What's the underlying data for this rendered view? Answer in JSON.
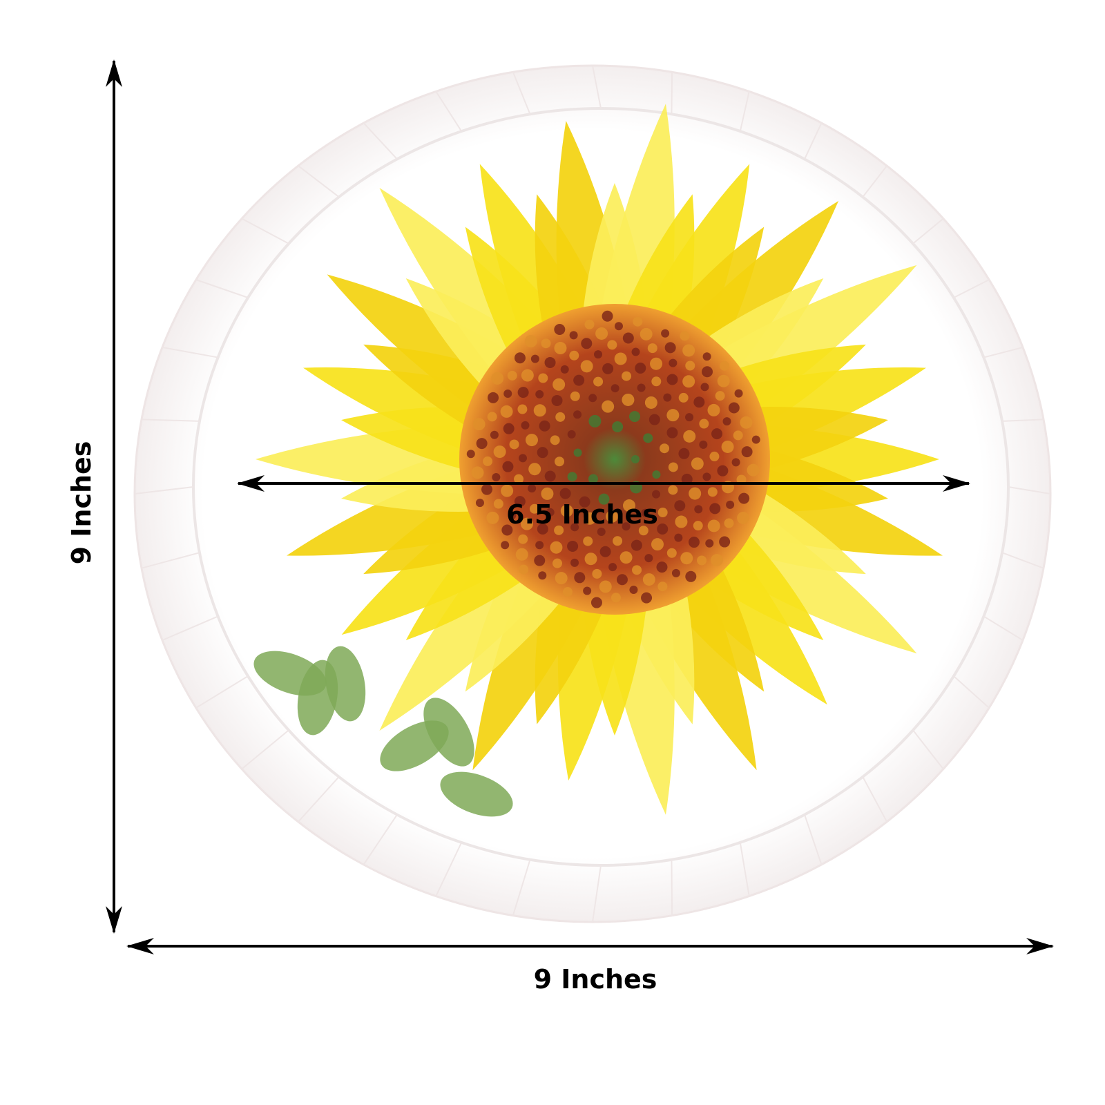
{
  "product": {
    "plate_color": "#fdfbfb",
    "petal_colors": [
      "#f7e21a",
      "#f3d20f",
      "#fbee5a"
    ],
    "center_colors": [
      "#e07a1c",
      "#a8341c",
      "#4d8a3a"
    ],
    "leaf_color": "#7fa957"
  },
  "dimensions": {
    "height_label": "9 Inches",
    "width_label": "9 Inches",
    "design_width_label": "6.5 Inches"
  }
}
